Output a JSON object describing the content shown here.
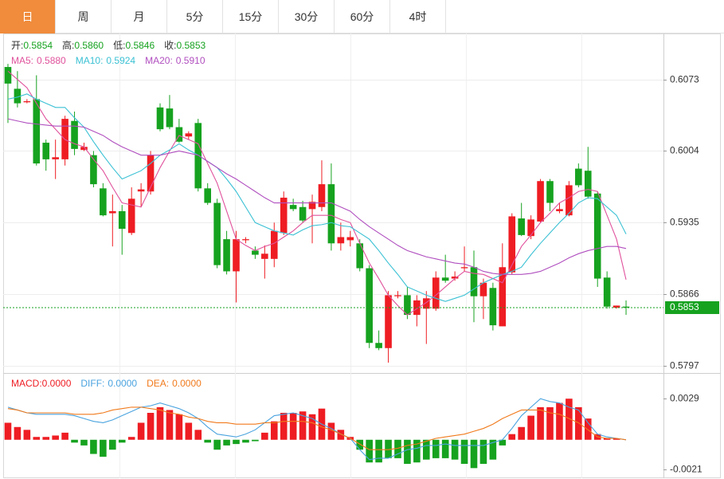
{
  "tabs": [
    "日",
    "周",
    "月",
    "5分",
    "15分",
    "30分",
    "60分",
    "4时"
  ],
  "active_tab": 0,
  "chart_data": [
    {
      "type": "candlestick",
      "header": [
        {
          "label": "开:",
          "value": {
            "value": 0.5854,
            "label": "0.5854"
          }
        },
        {
          "label": "高:",
          "value": {
            "value": 0.586,
            "label": "0.5860"
          }
        },
        {
          "label": "低:",
          "value": {
            "value": 0.5846,
            "label": "0.5846"
          }
        },
        {
          "label": "收:",
          "value": {
            "value": 0.5853,
            "label": "0.5853"
          }
        }
      ],
      "up_color": "#ee1d23",
      "down_color": "#16a21f",
      "candles": [
        [
          0.6085,
          0.6088,
          0.6031,
          0.6069
        ],
        [
          0.6064,
          0.6081,
          0.6046,
          0.605
        ],
        [
          0.6051,
          0.6054,
          0.605,
          0.6052
        ],
        [
          0.6054,
          0.6077,
          0.599,
          0.5992
        ],
        [
          0.6012,
          0.6015,
          0.5985,
          0.5996
        ],
        [
          0.5996,
          0.6015,
          0.5977,
          0.5998
        ],
        [
          0.5996,
          0.6038,
          0.599,
          0.6035
        ],
        [
          0.6033,
          0.6042,
          0.6,
          0.6006
        ],
        [
          0.6005,
          0.6012,
          0.6004,
          0.6008
        ],
        [
          0.6,
          0.6004,
          0.5969,
          0.5972
        ],
        [
          0.5968,
          0.5973,
          0.5941,
          0.5942
        ],
        [
          0.5944,
          0.5962,
          0.5912,
          0.5946
        ],
        [
          0.5946,
          0.5952,
          0.5904,
          0.5929
        ],
        [
          0.5925,
          0.5969,
          0.5923,
          0.5958
        ],
        [
          0.5965,
          0.5973,
          0.595,
          0.5967
        ],
        [
          0.5965,
          0.6004,
          0.5962,
          0.6
        ],
        [
          0.6046,
          0.605,
          0.6023,
          0.6025
        ],
        [
          0.6045,
          0.6058,
          0.6025,
          0.6027
        ],
        [
          0.6027,
          0.6035,
          0.6012,
          0.6013
        ],
        [
          0.6018,
          0.6023,
          0.6015,
          0.6021
        ],
        [
          0.6031,
          0.6035,
          0.5965,
          0.5968
        ],
        [
          0.5968,
          0.5973,
          0.5952,
          0.5954
        ],
        [
          0.5954,
          0.5958,
          0.5891,
          0.5894
        ],
        [
          0.5919,
          0.5927,
          0.5885,
          0.5888
        ],
        [
          0.5888,
          0.5927,
          0.5858,
          0.5919
        ],
        [
          0.5918,
          0.5921,
          0.5915,
          0.5919
        ],
        [
          0.5908,
          0.5912,
          0.59,
          0.5904
        ],
        [
          0.59,
          0.5913,
          0.5881,
          0.5905
        ],
        [
          0.59,
          0.5935,
          0.5892,
          0.5927
        ],
        [
          0.5925,
          0.5965,
          0.5923,
          0.5959
        ],
        [
          0.5952,
          0.5958,
          0.5946,
          0.5948
        ],
        [
          0.595,
          0.5956,
          0.5935,
          0.5937
        ],
        [
          0.5948,
          0.5962,
          0.5915,
          0.5955
        ],
        [
          0.595,
          0.5995,
          0.5946,
          0.5972
        ],
        [
          0.5972,
          0.5992,
          0.5908,
          0.5915
        ],
        [
          0.5915,
          0.5935,
          0.5908,
          0.5921
        ],
        [
          0.5918,
          0.5927,
          0.5912,
          0.5921
        ],
        [
          0.5915,
          0.5919,
          0.5888,
          0.5891
        ],
        [
          0.5891,
          0.5894,
          0.5814,
          0.5819
        ],
        [
          0.5819,
          0.5831,
          0.5812,
          0.5814
        ],
        [
          0.5814,
          0.5869,
          0.58,
          0.5865
        ],
        [
          0.5864,
          0.5869,
          0.5862,
          0.5865
        ],
        [
          0.5865,
          0.5873,
          0.5842,
          0.5846
        ],
        [
          0.5846,
          0.5865,
          0.5835,
          0.586
        ],
        [
          0.5852,
          0.5869,
          0.5818,
          0.5862
        ],
        [
          0.5852,
          0.5888,
          0.585,
          0.5882
        ],
        [
          0.5882,
          0.5904,
          0.5877,
          0.5879
        ],
        [
          0.5881,
          0.5888,
          0.5879,
          0.5883
        ],
        [
          0.5891,
          0.5912,
          0.5888,
          0.5892
        ],
        [
          0.5892,
          0.5908,
          0.5839,
          0.5864
        ],
        [
          0.5864,
          0.5881,
          0.5842,
          0.5877
        ],
        [
          0.5872,
          0.5877,
          0.5831,
          0.5836
        ],
        [
          0.5835,
          0.5915,
          0.5835,
          0.5892
        ],
        [
          0.5887,
          0.5944,
          0.5885,
          0.5941
        ],
        [
          0.5939,
          0.5954,
          0.5922,
          0.5923
        ],
        [
          0.5922,
          0.5942,
          0.5919,
          0.5938
        ],
        [
          0.5936,
          0.5977,
          0.5935,
          0.5975
        ],
        [
          0.5975,
          0.5977,
          0.5946,
          0.5954
        ],
        [
          0.5946,
          0.5954,
          0.5944,
          0.5948
        ],
        [
          0.5942,
          0.5975,
          0.5941,
          0.5971
        ],
        [
          0.5987,
          0.5992,
          0.5969,
          0.5971
        ],
        [
          0.5985,
          0.6008,
          0.5958,
          0.596
        ],
        [
          0.5963,
          0.5965,
          0.5873,
          0.5881
        ],
        [
          0.5882,
          0.5888,
          0.5852,
          0.5854
        ],
        [
          0.5853,
          0.5855,
          0.5852,
          0.5855
        ],
        [
          0.5854,
          0.586,
          0.5846,
          0.5853
        ]
      ],
      "series": [
        {
          "name": "MA5:",
          "color": "#e0529c",
          "current": {
            "value": 0.588,
            "label": "0.5880"
          },
          "values": [
            0.6081,
            0.6073,
            0.6065,
            0.605,
            0.6035,
            0.6025,
            0.6015,
            0.6011,
            0.6008,
            0.5996,
            0.5985,
            0.5969,
            0.5954,
            0.5952,
            0.595,
            0.5969,
            0.5988,
            0.6004,
            0.6019,
            0.6015,
            0.6011,
            0.5992,
            0.5973,
            0.5946,
            0.5919,
            0.5913,
            0.5908,
            0.5912,
            0.5915,
            0.5921,
            0.5927,
            0.5935,
            0.5942,
            0.5942,
            0.5942,
            0.5938,
            0.5935,
            0.5915,
            0.5896,
            0.5881,
            0.5865,
            0.5855,
            0.5846,
            0.5852,
            0.5858,
            0.5865,
            0.5873,
            0.5881,
            0.5888,
            0.5886,
            0.5885,
            0.5881,
            0.5877,
            0.5894,
            0.5912,
            0.5923,
            0.5935,
            0.5944,
            0.5954,
            0.5959,
            0.5965,
            0.5967,
            0.5965,
            0.5942,
            0.5919,
            0.588
          ]
        },
        {
          "name": "MA10:",
          "color": "#3bc1d4",
          "current": {
            "value": 0.5924,
            "label": "0.5924"
          },
          "values": [
            0.6054,
            0.6056,
            0.6059,
            0.6054,
            0.605,
            0.6046,
            0.6046,
            0.6036,
            0.6027,
            0.6013,
            0.6,
            0.5988,
            0.5977,
            0.5981,
            0.5985,
            0.5992,
            0.6,
            0.6005,
            0.6011,
            0.6005,
            0.6,
            0.5994,
            0.5988,
            0.5977,
            0.5965,
            0.595,
            0.5935,
            0.5931,
            0.5927,
            0.5925,
            0.5923,
            0.5928,
            0.5932,
            0.5933,
            0.5935,
            0.5932,
            0.5931,
            0.5925,
            0.5919,
            0.5908,
            0.5896,
            0.5885,
            0.5873,
            0.5869,
            0.5865,
            0.5862,
            0.5859,
            0.5862,
            0.5865,
            0.5871,
            0.5877,
            0.5881,
            0.5885,
            0.5888,
            0.5892,
            0.5904,
            0.5915,
            0.5925,
            0.5935,
            0.5944,
            0.5954,
            0.5959,
            0.5958,
            0.595,
            0.5942,
            0.5924
          ]
        },
        {
          "name": "MA20:",
          "color": "#b04fbf",
          "current": {
            "value": 0.591,
            "label": "0.5910"
          },
          "values": [
            0.6035,
            0.6033,
            0.6031,
            0.603,
            0.6029,
            0.6028,
            0.6028,
            0.6028,
            0.6027,
            0.6023,
            0.6019,
            0.6013,
            0.6008,
            0.6004,
            0.6,
            0.6,
            0.6,
            0.6002,
            0.6004,
            0.6002,
            0.6,
            0.5994,
            0.5988,
            0.5982,
            0.5977,
            0.5971,
            0.5965,
            0.5959,
            0.5954,
            0.5954,
            0.5954,
            0.5954,
            0.5954,
            0.5954,
            0.5954,
            0.595,
            0.5946,
            0.5938,
            0.5931,
            0.5925,
            0.5919,
            0.5913,
            0.5908,
            0.5905,
            0.5902,
            0.59,
            0.5898,
            0.5896,
            0.5895,
            0.5892,
            0.5888,
            0.5886,
            0.5885,
            0.5885,
            0.5885,
            0.5886,
            0.5888,
            0.5892,
            0.5896,
            0.5901,
            0.5905,
            0.5908,
            0.591,
            0.5912,
            0.5912,
            0.591
          ]
        }
      ],
      "last_price": 0.5853,
      "last_price_color": "#16a21f",
      "ylim": [
        0.579,
        0.6115
      ],
      "yticks": [
        0.6073,
        0.6004,
        0.5935,
        0.5866,
        0.5797
      ],
      "grid": true
    },
    {
      "type": "bar",
      "up_color": "#ee1d23",
      "down_color": "#16a21f",
      "series": [
        {
          "name": "MACD:",
          "color": "#ee1d23",
          "current": {
            "value": 0,
            "label": "0.0000"
          },
          "values": [
            0.0012,
            0.0009,
            0.0007,
            0.0002,
            0.0002,
            0.0003,
            0.0005,
            -0.0002,
            -0.0004,
            -0.001,
            -0.0012,
            -0.0007,
            -0.0002,
            0.0002,
            0.0012,
            0.0019,
            0.0023,
            0.0021,
            0.0018,
            0.0012,
            0.0007,
            -0.0002,
            -0.0007,
            -0.0004,
            -0.0003,
            -0.0002,
            -0.0001,
            0.0005,
            0.0013,
            0.0019,
            0.0019,
            0.002,
            0.0018,
            0.0022,
            0.0012,
            0.0007,
            0.0002,
            -0.0007,
            -0.0016,
            -0.0016,
            -0.0013,
            -0.0013,
            -0.0017,
            -0.0016,
            -0.0014,
            -0.0013,
            -0.0013,
            -0.0014,
            -0.0017,
            -0.002,
            -0.0017,
            -0.0014,
            -0.0004,
            0.0004,
            0.0009,
            0.0017,
            0.0023,
            0.0023,
            0.0026,
            0.0029,
            0.0023,
            0.0015,
            0.0004,
            0.0001,
            0.0001,
            0
          ]
        },
        {
          "name": "DIFF:",
          "color": "#4aa3df",
          "current": {
            "value": 0,
            "label": "0.0000"
          },
          "values": [
            0.0023,
            0.0021,
            0.0019,
            0.0018,
            0.0018,
            0.0018,
            0.0018,
            0.0017,
            0.0015,
            0.0013,
            0.0012,
            0.0014,
            0.0017,
            0.002,
            0.0023,
            0.0024,
            0.0026,
            0.0024,
            0.0022,
            0.0019,
            0.0015,
            0.0009,
            0.0004,
            0.0003,
            0.0002,
            0.0004,
            0.0007,
            0.0012,
            0.0017,
            0.0018,
            0.0019,
            0.0017,
            0.0015,
            0.0011,
            0.0008,
            0.0004,
            0.0001,
            -0.0007,
            -0.0014,
            -0.0013,
            -0.0013,
            -0.001,
            -0.0007,
            -0.0006,
            -0.0004,
            -0.0004,
            -0.0003,
            -0.0004,
            -0.0004,
            -0.0004,
            -0.0004,
            -0.0002,
            0,
            0.0008,
            0.0017,
            0.0023,
            0.0029,
            0.0027,
            0.0026,
            0.0023,
            0.0021,
            0.0012,
            0.0004,
            0.0002,
            0.0001,
            0
          ]
        },
        {
          "name": "DEA:",
          "color": "#f07a1c",
          "current": {
            "value": 0,
            "label": "0.0000"
          },
          "values": [
            0.0022,
            0.0021,
            0.0019,
            0.0019,
            0.0019,
            0.0019,
            0.0019,
            0.0018,
            0.0018,
            0.0018,
            0.0019,
            0.0021,
            0.0022,
            0.0023,
            0.0023,
            0.0022,
            0.0021,
            0.0019,
            0.0018,
            0.0016,
            0.0015,
            0.0013,
            0.0012,
            0.0012,
            0.0011,
            0.0011,
            0.0011,
            0.0012,
            0.0012,
            0.0013,
            0.0013,
            0.0013,
            0.0012,
            0.0009,
            0.0007,
            0.0004,
            0.0001,
            -0.0003,
            -0.0007,
            -0.0007,
            -0.0007,
            -0.0006,
            -0.0004,
            -0.0003,
            -0.0001,
            0.0001,
            0.0002,
            0.0003,
            0.0004,
            0.0006,
            0.0008,
            0.0011,
            0.0015,
            0.0018,
            0.0021,
            0.0021,
            0.0021,
            0.0019,
            0.0018,
            0.0015,
            0.0012,
            0.0007,
            0.0002,
            0.0001,
            0.0001,
            0
          ]
        }
      ],
      "ylim": [
        -0.0026,
        0.0046
      ],
      "yticks": [
        0.0029,
        -0.0021
      ],
      "grid": false
    }
  ]
}
